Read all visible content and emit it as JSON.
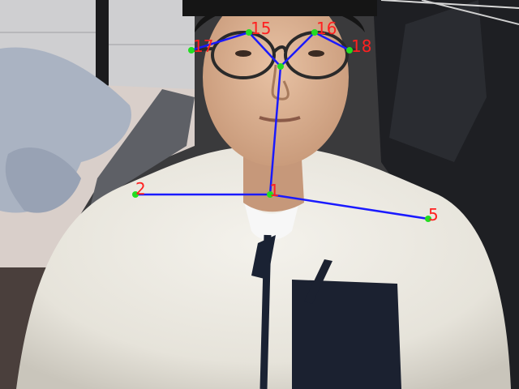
{
  "pose": {
    "keypoints": [
      {
        "id": "1",
        "label": "1"
      },
      {
        "id": "2",
        "label": "2"
      },
      {
        "id": "5",
        "label": "5"
      },
      {
        "id": "15",
        "label": "15"
      },
      {
        "id": "16",
        "label": "16"
      },
      {
        "id": "17",
        "label": "17"
      },
      {
        "id": "18",
        "label": "18"
      }
    ],
    "colors": {
      "limb": "#1a1aff",
      "joint": "#22dd22",
      "label": "#ff2020"
    }
  }
}
